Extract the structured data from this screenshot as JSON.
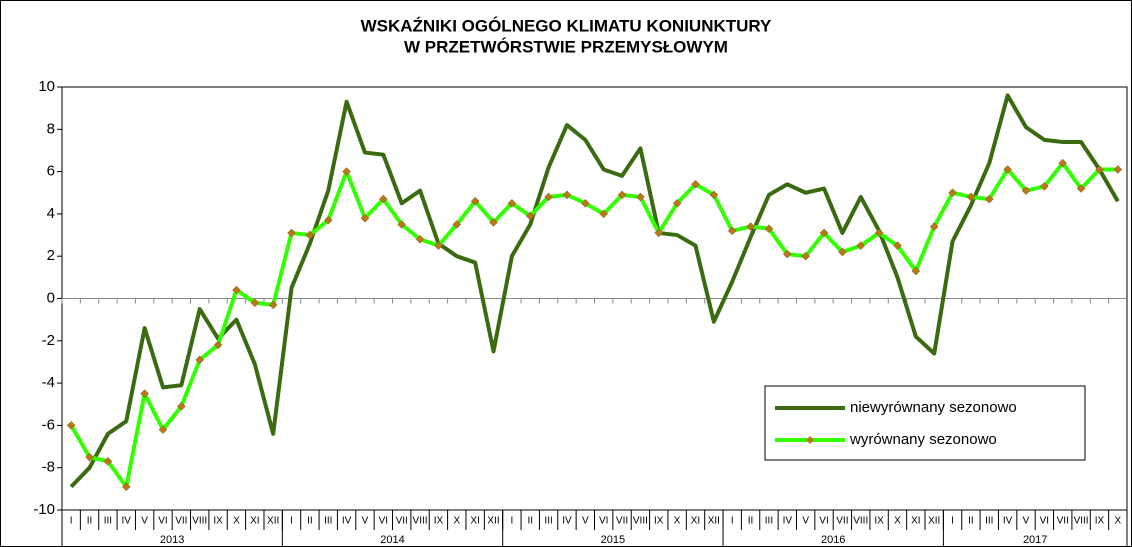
{
  "chart_data": {
    "type": "line",
    "title": [
      "WSKAŹNIKI OGÓLNEGO KLIMATU KONIUNKTURY",
      "W PRZETWÓRSTWIE PRZEMYSŁOWYM"
    ],
    "categories": [
      "I",
      "II",
      "III",
      "IV",
      "V",
      "VI",
      "VII",
      "VIII",
      "IX",
      "X",
      "XI",
      "XII",
      "I",
      "II",
      "III",
      "IV",
      "V",
      "VI",
      "VII",
      "VIII",
      "IX",
      "X",
      "XI",
      "XII",
      "I",
      "II",
      "III",
      "IV",
      "V",
      "VI",
      "VII",
      "VIII",
      "IX",
      "X",
      "XI",
      "XII",
      "I",
      "II",
      "III",
      "IV",
      "V",
      "VI",
      "VII",
      "VIII",
      "IX",
      "X",
      "XI",
      "XII",
      "I",
      "II",
      "III",
      "IV",
      "V",
      "VI",
      "VII",
      "VIII",
      "IX",
      "X"
    ],
    "years": [
      "2013",
      "2014",
      "2015",
      "2016",
      "2017"
    ],
    "series": [
      {
        "name": "niewyrównany sezonowo",
        "color": "#3a6b10",
        "marker": false,
        "values": [
          -8.9,
          -8.0,
          -6.4,
          -5.8,
          -1.4,
          -4.2,
          -4.1,
          -0.5,
          -1.9,
          -1.0,
          -3.1,
          -6.4,
          0.5,
          2.6,
          5.1,
          9.3,
          6.9,
          6.8,
          4.5,
          5.1,
          2.6,
          2.0,
          1.7,
          -2.5,
          2.0,
          3.5,
          6.2,
          8.2,
          7.5,
          6.1,
          5.8,
          7.1,
          3.1,
          3.0,
          2.5,
          -1.1,
          0.8,
          2.9,
          4.9,
          5.4,
          5.0,
          5.2,
          3.1,
          4.8,
          3.2,
          1.0,
          -1.8,
          -2.6,
          2.7,
          4.4,
          6.4,
          9.6,
          8.1,
          7.5,
          7.4,
          7.4,
          6.1,
          4.6
        ]
      },
      {
        "name": "wyrównany sezonowo",
        "color": "#33ff00",
        "marker": true,
        "marker_color": "#b87818",
        "values": [
          -6.0,
          -7.5,
          -7.7,
          -8.9,
          -4.5,
          -6.2,
          -5.1,
          -2.9,
          -2.2,
          0.4,
          -0.2,
          -0.3,
          3.1,
          3.0,
          3.7,
          6.0,
          3.8,
          4.7,
          3.5,
          2.8,
          2.5,
          3.5,
          4.6,
          3.6,
          4.5,
          3.9,
          4.8,
          4.9,
          4.5,
          4.0,
          4.9,
          4.8,
          3.1,
          4.5,
          5.4,
          4.9,
          3.2,
          3.4,
          3.3,
          2.1,
          2.0,
          3.1,
          2.2,
          2.5,
          3.1,
          2.5,
          1.3,
          3.4,
          5.0,
          4.8,
          4.7,
          6.1,
          5.1,
          5.3,
          6.4,
          5.2,
          6.1,
          6.1
        ]
      }
    ],
    "ylim": [
      -10,
      10
    ],
    "yticks": [
      -10,
      -8,
      -6,
      -4,
      -2,
      0,
      2,
      4,
      6,
      8,
      10
    ]
  }
}
